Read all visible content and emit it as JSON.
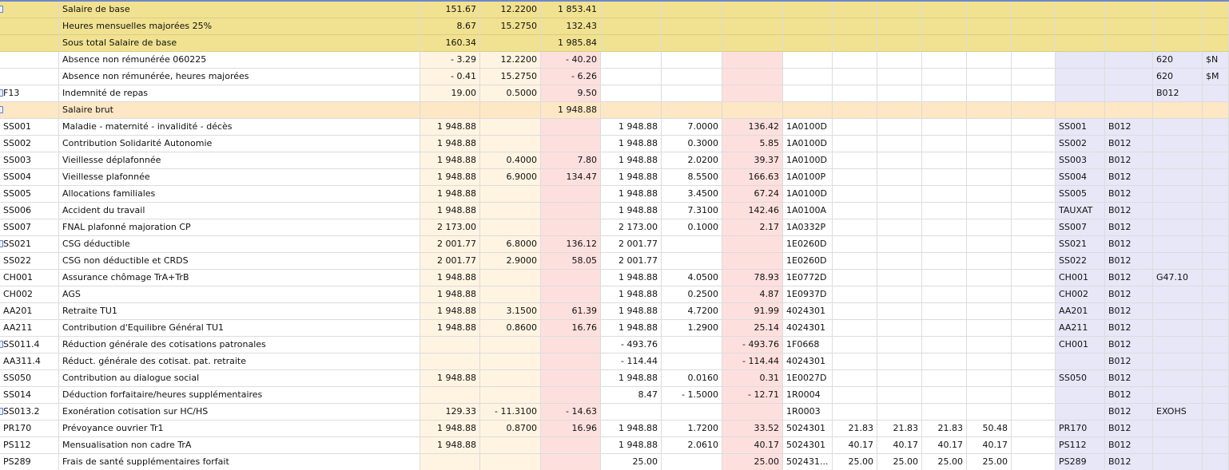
{
  "colors": {
    "highlight": "#f1e291",
    "subtotal": "#fde7c4",
    "base": "#fff4e2",
    "amount": "#fde0de",
    "code": "#e7e7f8"
  },
  "rows": [
    {
      "style": "hl",
      "marker": true,
      "c": [
        "",
        "Salaire de base",
        "151.67",
        "12.2200",
        "1 853.41",
        "",
        "",
        "",
        "",
        "",
        "",
        "",
        "",
        "",
        "",
        "",
        "",
        ""
      ]
    },
    {
      "style": "hl",
      "marker": false,
      "c": [
        "",
        "Heures mensuelles majorées 25%",
        "8.67",
        "15.2750",
        "132.43",
        "",
        "",
        "",
        "",
        "",
        "",
        "",
        "",
        "",
        "",
        "",
        "",
        ""
      ]
    },
    {
      "style": "hl",
      "marker": false,
      "c": [
        "",
        "Sous total Salaire de base",
        "160.34",
        "",
        "1 985.84",
        "",
        "",
        "",
        "",
        "",
        "",
        "",
        "",
        "",
        "",
        "",
        "",
        ""
      ]
    },
    {
      "style": "n",
      "marker": false,
      "c": [
        "",
        "Absence non rémunérée 060225",
        "- 3.29",
        "12.2200",
        "- 40.20",
        "",
        "",
        "",
        "",
        "",
        "",
        "",
        "",
        "",
        "",
        "",
        "620",
        "$N"
      ]
    },
    {
      "style": "n",
      "marker": false,
      "c": [
        "",
        "Absence non rémunérée, heures majorées",
        "- 0.41",
        "15.2750",
        "- 6.26",
        "",
        "",
        "",
        "",
        "",
        "",
        "",
        "",
        "",
        "",
        "",
        "620",
        "$M"
      ]
    },
    {
      "style": "n",
      "marker": true,
      "c": [
        "F13",
        "Indemnité de repas",
        "19.00",
        "0.5000",
        "9.50",
        "",
        "",
        "",
        "",
        "",
        "",
        "",
        "",
        "",
        "",
        "B012",
        "",
        ""
      ]
    },
    {
      "style": "sb",
      "marker": true,
      "c": [
        "",
        "Salaire brut",
        "",
        "",
        "1 948.88",
        "",
        "",
        "",
        "",
        "",
        "",
        "",
        "",
        "",
        "",
        "",
        "",
        ""
      ]
    },
    {
      "style": "n",
      "marker": false,
      "c": [
        "SS001",
        "Maladie - maternité - invalidité - décès",
        "1 948.88",
        "",
        "",
        "1 948.88",
        "7.0000",
        "136.42",
        "1A0100D",
        "",
        "",
        "",
        "",
        "SS001",
        "B012",
        "",
        "",
        ""
      ]
    },
    {
      "style": "n",
      "marker": false,
      "c": [
        "SS002",
        "Contribution Solidarité Autonomie",
        "1 948.88",
        "",
        "",
        "1 948.88",
        "0.3000",
        "5.85",
        "1A0100D",
        "",
        "",
        "",
        "",
        "SS002",
        "B012",
        "",
        "",
        ""
      ]
    },
    {
      "style": "n",
      "marker": false,
      "c": [
        "SS003",
        "Vieillesse déplafonnée",
        "1 948.88",
        "0.4000",
        "7.80",
        "1 948.88",
        "2.0200",
        "39.37",
        "1A0100D",
        "",
        "",
        "",
        "",
        "SS003",
        "B012",
        "",
        "",
        ""
      ]
    },
    {
      "style": "n",
      "marker": false,
      "c": [
        "SS004",
        "Vieillesse plafonnée",
        "1 948.88",
        "6.9000",
        "134.47",
        "1 948.88",
        "8.5500",
        "166.63",
        "1A0100P",
        "",
        "",
        "",
        "",
        "SS004",
        "B012",
        "",
        "",
        ""
      ]
    },
    {
      "style": "n",
      "marker": false,
      "c": [
        "SS005",
        "Allocations familiales",
        "1 948.88",
        "",
        "",
        "1 948.88",
        "3.4500",
        "67.24",
        "1A0100D",
        "",
        "",
        "",
        "",
        "SS005",
        "B012",
        "",
        "",
        ""
      ]
    },
    {
      "style": "n",
      "marker": false,
      "c": [
        "SS006",
        "Accident du travail",
        "1 948.88",
        "",
        "",
        "1 948.88",
        "7.3100",
        "142.46",
        "1A0100A",
        "",
        "",
        "",
        "",
        "TAUXAT",
        "B012",
        "",
        "",
        ""
      ]
    },
    {
      "style": "n",
      "marker": false,
      "c": [
        "SS007",
        "FNAL plafonné majoration CP",
        "2 173.00",
        "",
        "",
        "2 173.00",
        "0.1000",
        "2.17",
        "1A0332P",
        "",
        "",
        "",
        "",
        "SS007",
        "B012",
        "",
        "",
        ""
      ]
    },
    {
      "style": "n",
      "marker": true,
      "c": [
        "SS021",
        "CSG déductible",
        "2 001.77",
        "6.8000",
        "136.12",
        "2 001.77",
        "",
        "",
        "1E0260D",
        "",
        "",
        "",
        "",
        "SS021",
        "B012",
        "",
        "",
        ""
      ]
    },
    {
      "style": "n",
      "marker": false,
      "c": [
        "SS022",
        "CSG non déductible et CRDS",
        "2 001.77",
        "2.9000",
        "58.05",
        "2 001.77",
        "",
        "",
        "1E0260D",
        "",
        "",
        "",
        "",
        "SS022",
        "B012",
        "",
        "",
        ""
      ]
    },
    {
      "style": "n",
      "marker": false,
      "c": [
        "CH001",
        "Assurance chômage TrA+TrB",
        "1 948.88",
        "",
        "",
        "1 948.88",
        "4.0500",
        "78.93",
        "1E0772D",
        "",
        "",
        "",
        "",
        "CH001",
        "B012",
        "G47.10",
        "",
        ""
      ]
    },
    {
      "style": "n",
      "marker": false,
      "c": [
        "CH002",
        "AGS",
        "1 948.88",
        "",
        "",
        "1 948.88",
        "0.2500",
        "4.87",
        "1E0937D",
        "",
        "",
        "",
        "",
        "CH002",
        "B012",
        "",
        "",
        ""
      ]
    },
    {
      "style": "n",
      "marker": false,
      "c": [
        "AA201",
        "Retraite TU1",
        "1 948.88",
        "3.1500",
        "61.39",
        "1 948.88",
        "4.7200",
        "91.99",
        "4024301",
        "",
        "",
        "",
        "",
        "AA201",
        "B012",
        "",
        "",
        ""
      ]
    },
    {
      "style": "n",
      "marker": false,
      "c": [
        "AA211",
        "Contribution d'Equilibre Général TU1",
        "1 948.88",
        "0.8600",
        "16.76",
        "1 948.88",
        "1.2900",
        "25.14",
        "4024301",
        "",
        "",
        "",
        "",
        "AA211",
        "B012",
        "",
        "",
        ""
      ]
    },
    {
      "style": "n",
      "marker": true,
      "c": [
        "SS011.4",
        "Réduction générale des cotisations patronales",
        "",
        "",
        "",
        "- 493.76",
        "",
        "- 493.76",
        "1F0668",
        "",
        "",
        "",
        "",
        "CH001",
        "B012",
        "",
        "",
        ""
      ]
    },
    {
      "style": "n",
      "marker": false,
      "c": [
        "AA311.4",
        "Réduct. générale des cotisat. pat. retraite",
        "",
        "",
        "",
        "- 114.44",
        "",
        "- 114.44",
        "4024301",
        "",
        "",
        "",
        "",
        "",
        "B012",
        "",
        "",
        ""
      ]
    },
    {
      "style": "n",
      "marker": false,
      "c": [
        "SS050",
        "Contribution au dialogue social",
        "1 948.88",
        "",
        "",
        "1 948.88",
        "0.0160",
        "0.31",
        "1E0027D",
        "",
        "",
        "",
        "",
        "SS050",
        "B012",
        "",
        "",
        ""
      ]
    },
    {
      "style": "n",
      "marker": false,
      "c": [
        "SS014",
        "Déduction forfaitaire/heures supplémentaires",
        "",
        "",
        "",
        "8.47",
        "- 1.5000",
        "- 12.71",
        "1R0004",
        "",
        "",
        "",
        "",
        "",
        "B012",
        "",
        "",
        ""
      ]
    },
    {
      "style": "n",
      "marker": true,
      "c": [
        "SS013.2",
        "Exonération cotisation sur HC/HS",
        "129.33",
        "- 11.3100",
        "- 14.63",
        "",
        "",
        "",
        "1R0003",
        "",
        "",
        "",
        "",
        "",
        "B012",
        "EXOHS",
        "",
        ""
      ]
    },
    {
      "style": "n",
      "marker": false,
      "c": [
        "PR170",
        "Prévoyance ouvrier Tr1",
        "1 948.88",
        "0.8700",
        "16.96",
        "1 948.88",
        "1.7200",
        "33.52",
        "5024301",
        "21.83",
        "21.83",
        "21.83",
        "50.48",
        "PR170",
        "B012",
        "",
        "",
        ""
      ]
    },
    {
      "style": "n",
      "marker": false,
      "c": [
        "PS112",
        "Mensualisation non cadre TrA",
        "1 948.88",
        "",
        "",
        "1 948.88",
        "2.0610",
        "40.17",
        "5024301",
        "40.17",
        "40.17",
        "40.17",
        "40.17",
        "PS112",
        "B012",
        "",
        "",
        ""
      ]
    },
    {
      "style": "n",
      "marker": false,
      "c": [
        "PS289",
        "Frais de santé supplémentaires forfait",
        "",
        "",
        "",
        "25.00",
        "",
        "25.00",
        "502431...",
        "25.00",
        "25.00",
        "25.00",
        "25.00",
        "PS289",
        "B012",
        "",
        "",
        ""
      ]
    }
  ]
}
